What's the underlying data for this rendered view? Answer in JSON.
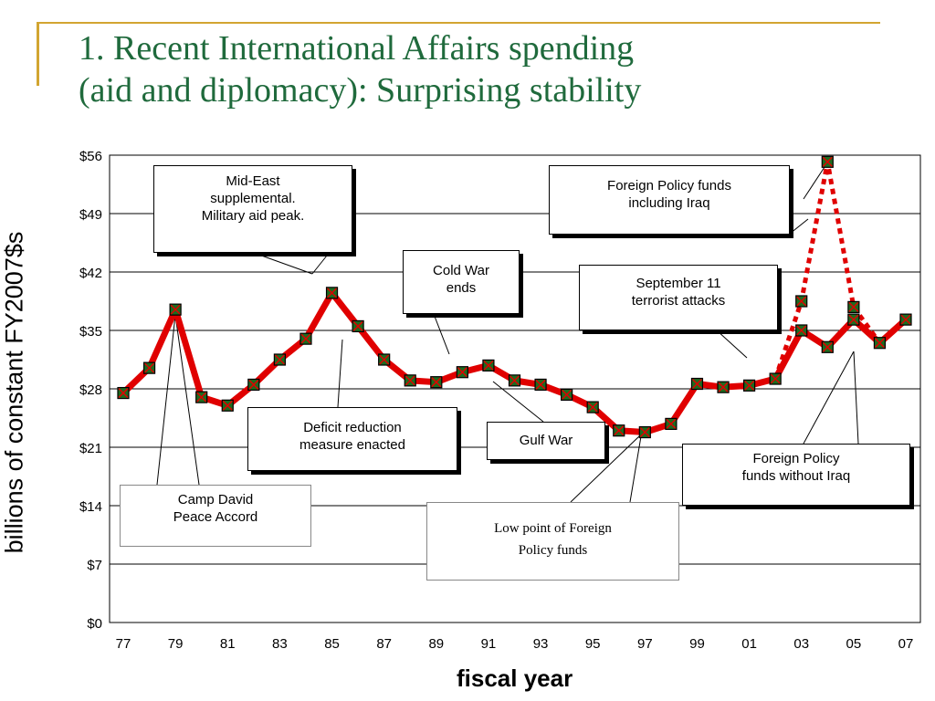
{
  "slide": {
    "title_line1": "1. Recent International Affairs spending",
    "title_line2": "(aid and diplomacy): Surprising stability",
    "accent_color": "#d2a531",
    "title_color": "#1f6a3c"
  },
  "chart_data": {
    "type": "line",
    "xlabel": "fiscal year",
    "ylabel": "billions of constant FY2007$s",
    "ylim": [
      0,
      56
    ],
    "y_ticks": [
      "$0",
      "$7",
      "$14",
      "$21",
      "$28",
      "$35",
      "$42",
      "$49",
      "$56"
    ],
    "y_tick_values": [
      0,
      7,
      14,
      21,
      28,
      35,
      42,
      49,
      56
    ],
    "x_tick_labels": [
      "77",
      "79",
      "81",
      "83",
      "85",
      "87",
      "89",
      "91",
      "93",
      "95",
      "97",
      "99",
      "01",
      "03",
      "05",
      "07"
    ],
    "grid": "horizontal",
    "x": [
      1977,
      1978,
      1979,
      1980,
      1981,
      1982,
      1983,
      1984,
      1985,
      1986,
      1987,
      1988,
      1989,
      1990,
      1991,
      1992,
      1993,
      1994,
      1995,
      1996,
      1997,
      1998,
      1999,
      2000,
      2001,
      2002,
      2003,
      2004,
      2005,
      2006,
      2007
    ],
    "series": [
      {
        "values": [
          27.5,
          30.5,
          37.5,
          27.0,
          26.0,
          28.5,
          31.5,
          34.0,
          39.5,
          35.5,
          31.5,
          29.0,
          28.8,
          30.0,
          30.8,
          29.0,
          28.5,
          27.3,
          25.8,
          23.0,
          22.8,
          23.8,
          28.6,
          28.2,
          28.4,
          29.2,
          35.0,
          33.0,
          36.3,
          33.5,
          36.3
        ],
        "color": "#e00000",
        "style": "solid"
      },
      {
        "x": [
          2002,
          2003,
          2004,
          2005,
          2006
        ],
        "values": [
          29.2,
          38.5,
          55.2,
          37.8,
          33.5
        ],
        "color": "#e00000",
        "style": "dotted"
      }
    ],
    "annotations": [
      {
        "lines": [
          "Mid-East",
          "supplemental.",
          "Military aid peak."
        ]
      },
      {
        "lines": [
          "Cold War",
          "ends"
        ]
      },
      {
        "lines": [
          "Foreign Policy funds",
          "including Iraq"
        ]
      },
      {
        "lines": [
          "September 11",
          "terrorist attacks"
        ]
      },
      {
        "lines": [
          "Deficit reduction",
          "measure enacted"
        ]
      },
      {
        "lines": [
          "Gulf War"
        ]
      },
      {
        "lines": [
          "Foreign Policy",
          "funds without Iraq"
        ]
      },
      {
        "lines": [
          "Camp David",
          "Peace Accord"
        ]
      },
      {
        "lines": [
          "Low point of Foreign",
          "Policy funds"
        ]
      }
    ]
  }
}
